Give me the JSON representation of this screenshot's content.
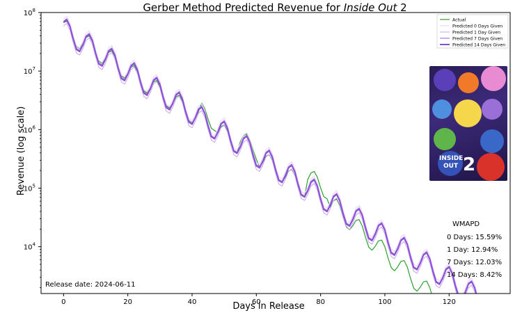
{
  "chart_data": {
    "type": "line",
    "title_main": "Gerber Method Predicted Revenue for ",
    "title_italic": "Inside Out",
    "title_suffix": " 2",
    "xlabel": "Days in Release",
    "ylabel": "Revenue (log scale)",
    "xlim": [
      -7,
      139
    ],
    "ylim_log10": [
      3.2,
      8
    ],
    "log_scale_y": true,
    "x_ticks": [
      0,
      20,
      40,
      60,
      80,
      100,
      120
    ],
    "y_tick_labels": [
      {
        "base": "10",
        "exp": "4",
        "value": 10000
      },
      {
        "base": "10",
        "exp": "5",
        "value": 100000
      },
      {
        "base": "10",
        "exp": "6",
        "value": 1000000
      },
      {
        "base": "10",
        "exp": "7",
        "value": 10000000
      },
      {
        "base": "10",
        "exp": "8",
        "value": 100000000
      }
    ],
    "legend_position": "top-right",
    "series": [
      {
        "name": "Actual",
        "color": "#2ca02c",
        "width": 1.2
      },
      {
        "name": "Predicted 0 Days Given",
        "color": "#e4d2f5",
        "width": 1.0
      },
      {
        "name": "Predicted 1 Day Given",
        "color": "#c7a4ea",
        "width": 1.0
      },
      {
        "name": "Predicted 7 Days Given",
        "color": "#a67ddb",
        "width": 1.2
      },
      {
        "name": "Predicted 14 Days Given",
        "color": "#8a4fd6",
        "width": 2.0
      }
    ],
    "wmapd": {
      "title": "WMAPD",
      "lines": [
        "0 Days: 15.59%",
        "1 Day: 12.94%",
        "7 Days: 12.03%",
        "14 Days: 8.42%"
      ]
    },
    "release_note": "Release date: 2024-06-11",
    "poster": {
      "line1": "INSIDE",
      "line2": "OUT",
      "numeral": "2"
    }
  }
}
